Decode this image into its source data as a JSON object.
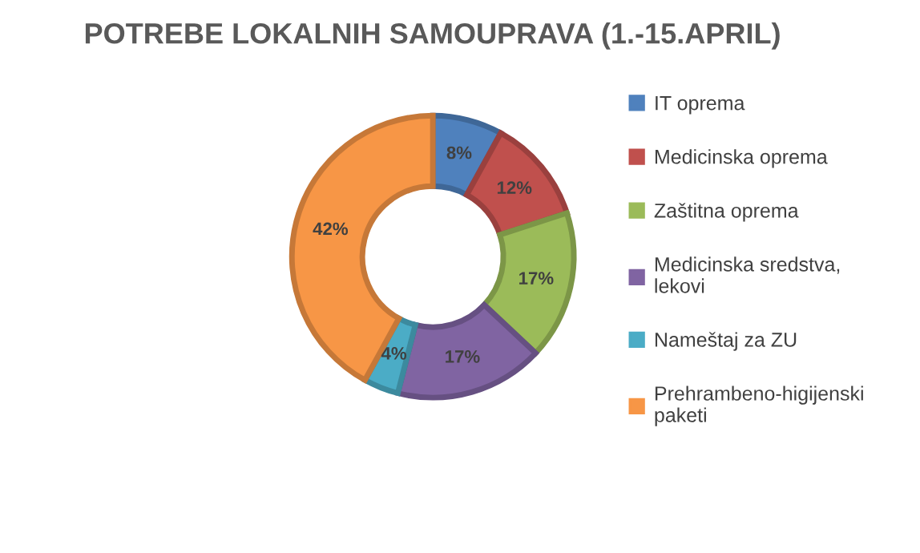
{
  "chart_data": {
    "type": "donut",
    "title": "POTREBE LOKALNIH SAMOUPRAVA (1.-15.APRIL)",
    "categories": [
      "IT oprema",
      "Medicinska oprema",
      "Zaštitna oprema",
      "Medicinska sredstva, lekovi",
      "Nameštaj za ZU",
      "Prehrambeno-higijenski paketi"
    ],
    "values": [
      8,
      12,
      17,
      17,
      4,
      42
    ],
    "value_labels": [
      "8%",
      "12%",
      "17%",
      "17%",
      "4%",
      "42%"
    ],
    "colors": [
      "#4f81bd",
      "#c0504d",
      "#9bbb59",
      "#8064a2",
      "#4bacc6",
      "#f79646"
    ],
    "legend": "right"
  }
}
